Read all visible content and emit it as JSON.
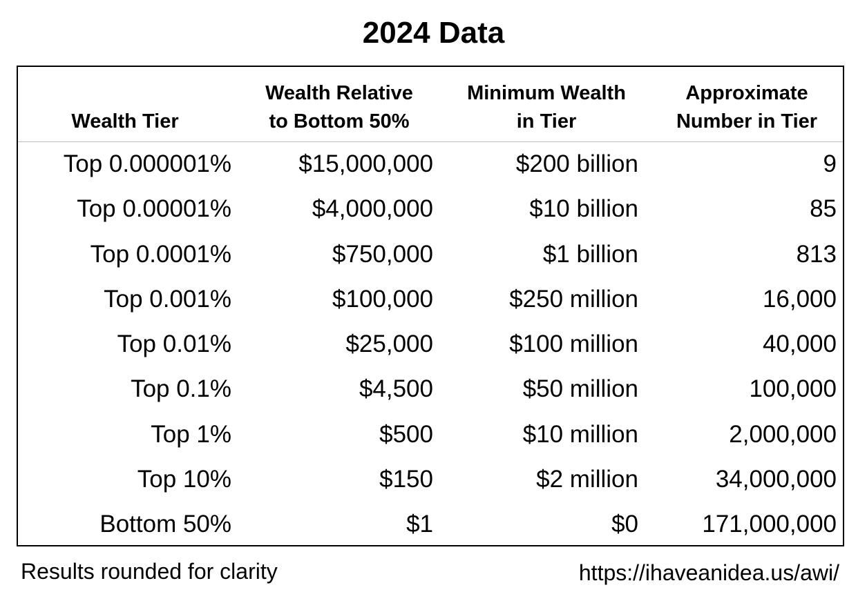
{
  "chart_data": {
    "type": "table",
    "title": "2024 Data",
    "columns": [
      [
        "Wealth Tier"
      ],
      [
        "Wealth Relative",
        "to Bottom 50%"
      ],
      [
        "Minimum Wealth",
        "in Tier"
      ],
      [
        "Approximate",
        "Number in Tier"
      ]
    ],
    "rows": [
      [
        "Top 0.000001%",
        "$15,000,000",
        "$200 billion",
        "9"
      ],
      [
        "Top 0.00001%",
        "$4,000,000",
        "$10 billion",
        "85"
      ],
      [
        "Top 0.0001%",
        "$750,000",
        "$1 billion",
        "813"
      ],
      [
        "Top 0.001%",
        "$100,000",
        "$250 million",
        "16,000"
      ],
      [
        "Top 0.01%",
        "$25,000",
        "$100 million",
        "40,000"
      ],
      [
        "Top 0.1%",
        "$4,500",
        "$50 million",
        "100,000"
      ],
      [
        "Top 1%",
        "$500",
        "$10 million",
        "2,000,000"
      ],
      [
        "Top 10%",
        "$150",
        "$2 million",
        "34,000,000"
      ],
      [
        "Bottom 50%",
        "$1",
        "$0",
        "171,000,000"
      ]
    ],
    "footnote": "Results rounded for clarity",
    "source": "https://ihaveanidea.us/awi/"
  }
}
